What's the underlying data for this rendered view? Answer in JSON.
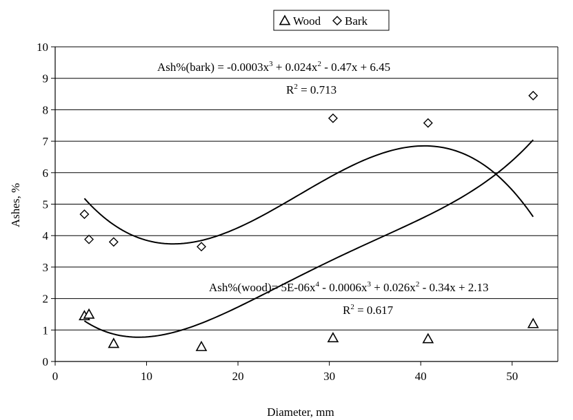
{
  "chart_data": {
    "type": "scatter",
    "xlabel": "Diameter, mm",
    "ylabel": "Ashes, %",
    "xlim": [
      0,
      55
    ],
    "ylim": [
      0,
      10
    ],
    "xticks": [
      0,
      10,
      20,
      30,
      40,
      50
    ],
    "yticks": [
      0,
      1,
      2,
      3,
      4,
      5,
      6,
      7,
      8,
      9,
      10
    ],
    "grid": "horizontal",
    "legend_position": "top-center",
    "series": [
      {
        "name": "Wood",
        "marker": "triangle",
        "color": "#000000",
        "x": [
          3.2,
          3.7,
          6.4,
          16.0,
          30.4,
          40.8,
          52.3
        ],
        "y": [
          1.45,
          1.5,
          0.57,
          0.47,
          0.75,
          0.72,
          1.2
        ],
        "trendline": {
          "degree": 4,
          "coefficients": [
            2.13,
            -0.34,
            0.026,
            -0.0006,
            5e-06
          ],
          "range": [
            3.2,
            52.3
          ],
          "equation": {
            "parts": [
              "Ash%(wood)= 5E-06x",
              "4",
              " - 0.0006x",
              "3",
              " + 0.026x",
              "2",
              " - 0.34x + 2.13"
            ],
            "r2_prefix": "R",
            "r2_exp": "2",
            "r2_value": " = 0.617"
          }
        }
      },
      {
        "name": "Bark",
        "marker": "diamond",
        "color": "#000000",
        "x": [
          3.2,
          3.7,
          6.4,
          16.0,
          30.4,
          40.8,
          52.3
        ],
        "y": [
          4.68,
          3.88,
          3.8,
          3.65,
          7.73,
          7.58,
          8.45
        ],
        "trendline": {
          "degree": 3,
          "coefficients": [
            6.45,
            -0.47,
            0.024,
            -0.0003
          ],
          "range": [
            3.2,
            52.3
          ],
          "equation": {
            "parts": [
              "Ash%(bark) = -0.0003x",
              "3",
              " + 0.024x",
              "2",
              " - 0.47x + 6.45"
            ],
            "r2_prefix": "R",
            "r2_exp": "2",
            "r2_value": " = 0.713"
          }
        }
      }
    ]
  }
}
